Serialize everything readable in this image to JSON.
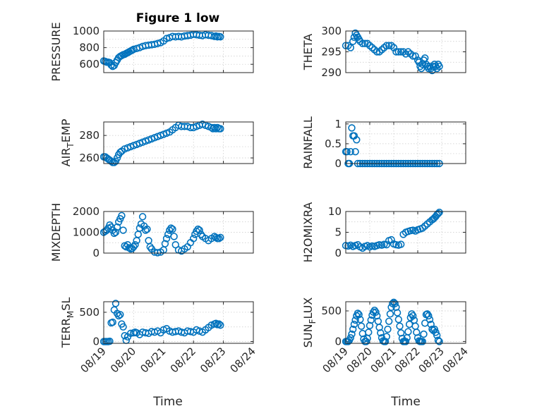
{
  "figure": {
    "title": "Figure 1 low",
    "marker_color": "#0072BD"
  },
  "chart_data": [
    {
      "type": "scatter",
      "title": "Figure 1 low",
      "xlabel": "",
      "ylabel": "PRESSURE",
      "ylabel_main": "PRESSURE",
      "ylabel_sub": "",
      "ylabel_tail": "",
      "xlim": [
        0,
        5
      ],
      "ylim": [
        500,
        1000
      ],
      "yticks": [
        600,
        800,
        1000
      ],
      "ytick_labels": [
        "600",
        "800",
        "1000"
      ],
      "xticks": [
        0,
        1,
        2,
        3,
        4,
        5
      ],
      "xtick_labels": [],
      "grid": true,
      "x": [
        0.0,
        0.05,
        0.1,
        0.15,
        0.2,
        0.25,
        0.3,
        0.35,
        0.4,
        0.45,
        0.5,
        0.55,
        0.6,
        0.65,
        0.7,
        0.75,
        0.8,
        0.85,
        0.9,
        0.95,
        1.0,
        1.1,
        1.2,
        1.3,
        1.4,
        1.5,
        1.6,
        1.7,
        1.8,
        1.9,
        2.0,
        2.1,
        2.2,
        2.3,
        2.4,
        2.5,
        2.6,
        2.7,
        2.8,
        2.9,
        3.0,
        3.1,
        3.2,
        3.3,
        3.4,
        3.5,
        3.6,
        3.7,
        3.75,
        3.8,
        3.85,
        3.9
      ],
      "y": [
        640,
        635,
        625,
        625,
        620,
        590,
        575,
        585,
        620,
        650,
        680,
        695,
        705,
        715,
        720,
        730,
        740,
        750,
        760,
        770,
        780,
        790,
        800,
        815,
        825,
        830,
        835,
        840,
        850,
        860,
        880,
        910,
        920,
        935,
        930,
        935,
        930,
        940,
        945,
        950,
        960,
        955,
        950,
        945,
        955,
        950,
        945,
        935,
        940,
        930,
        935,
        930
      ]
    },
    {
      "type": "scatter",
      "xlabel": "",
      "ylabel": "THETA",
      "ylabel_main": "THETA",
      "ylabel_sub": "",
      "ylabel_tail": "",
      "xlim": [
        0,
        5
      ],
      "ylim": [
        290,
        300
      ],
      "yticks": [
        290,
        295,
        300
      ],
      "ytick_labels": [
        "290",
        "295",
        "300"
      ],
      "xticks": [
        0,
        1,
        2,
        3,
        4,
        5
      ],
      "xtick_labels": [],
      "grid": true,
      "x": [
        0.0,
        0.1,
        0.2,
        0.3,
        0.35,
        0.4,
        0.45,
        0.5,
        0.55,
        0.6,
        0.7,
        0.8,
        0.9,
        1.0,
        1.1,
        1.2,
        1.3,
        1.4,
        1.5,
        1.6,
        1.7,
        1.8,
        1.9,
        2.0,
        2.1,
        2.2,
        2.3,
        2.4,
        2.5,
        2.6,
        2.7,
        2.8,
        2.9,
        3.0,
        3.05,
        3.1,
        3.15,
        3.2,
        3.25,
        3.3,
        3.35,
        3.4,
        3.45,
        3.5,
        3.55,
        3.6,
        3.65,
        3.7,
        3.75,
        3.8,
        3.85,
        3.9
      ],
      "y": [
        296.5,
        296.5,
        296,
        297.5,
        298.5,
        299.5,
        299,
        298.5,
        298,
        297.5,
        297,
        297,
        297,
        296.5,
        296,
        295.5,
        295,
        295,
        295.5,
        296,
        296.5,
        296.5,
        296.5,
        296,
        295,
        295,
        295,
        295,
        294.5,
        295,
        294.5,
        294,
        294,
        293,
        292.5,
        291.5,
        291,
        292,
        293,
        293.5,
        292,
        291.5,
        291,
        291.5,
        291,
        290.5,
        291.5,
        292,
        291.5,
        291,
        292,
        291.5
      ]
    },
    {
      "type": "scatter",
      "xlabel": "",
      "ylabel": "AIR_TEMP",
      "ylabel_main": "AIR",
      "ylabel_sub": "T",
      "ylabel_tail": "EMP",
      "xlim": [
        0,
        5
      ],
      "ylim": [
        255,
        292
      ],
      "yticks": [
        260,
        280
      ],
      "ytick_labels": [
        "260",
        "280"
      ],
      "xticks": [
        0,
        1,
        2,
        3,
        4,
        5
      ],
      "xtick_labels": [],
      "grid": true,
      "x": [
        0.0,
        0.05,
        0.1,
        0.15,
        0.2,
        0.25,
        0.3,
        0.35,
        0.4,
        0.45,
        0.5,
        0.55,
        0.6,
        0.7,
        0.8,
        0.9,
        1.0,
        1.1,
        1.2,
        1.3,
        1.4,
        1.5,
        1.6,
        1.7,
        1.8,
        1.9,
        2.0,
        2.1,
        2.2,
        2.3,
        2.4,
        2.5,
        2.6,
        2.7,
        2.8,
        2.9,
        3.0,
        3.1,
        3.2,
        3.3,
        3.4,
        3.5,
        3.6,
        3.65,
        3.7,
        3.75,
        3.8,
        3.85,
        3.9
      ],
      "y": [
        261,
        261,
        260,
        259,
        258,
        257,
        256,
        256,
        257,
        260,
        263,
        265,
        266,
        268,
        269,
        270,
        271,
        272,
        273,
        274,
        275,
        276,
        277,
        278,
        279,
        280,
        281,
        282,
        283,
        285,
        287,
        289,
        288,
        288,
        288,
        287,
        287,
        288,
        289,
        290,
        289,
        288,
        287,
        286,
        287,
        286,
        287,
        286,
        286
      ]
    },
    {
      "type": "scatter",
      "xlabel": "",
      "ylabel": "RAINFALL",
      "ylabel_main": "RAINFALL",
      "ylabel_sub": "",
      "ylabel_tail": "",
      "xlim": [
        0,
        5
      ],
      "ylim": [
        0,
        1.05
      ],
      "yticks": [
        0,
        0.5,
        1
      ],
      "ytick_labels": [
        "0",
        "0.5",
        "1"
      ],
      "xticks": [
        0,
        1,
        2,
        3,
        4,
        5
      ],
      "xtick_labels": [],
      "grid": true,
      "x": [
        0.0,
        0.05,
        0.1,
        0.15,
        0.2,
        0.25,
        0.3,
        0.35,
        0.4,
        0.45,
        0.5,
        0.6,
        0.7,
        0.8,
        0.9,
        1.0,
        1.1,
        1.2,
        1.3,
        1.4,
        1.5,
        1.6,
        1.7,
        1.8,
        1.9,
        2.0,
        2.1,
        2.2,
        2.3,
        2.4,
        2.5,
        2.6,
        2.7,
        2.8,
        2.9,
        3.0,
        3.1,
        3.2,
        3.3,
        3.4,
        3.5,
        3.6,
        3.7,
        3.8,
        3.9
      ],
      "y": [
        0.3,
        0.3,
        0.0,
        0.0,
        0.3,
        0.9,
        0.7,
        0.7,
        0.3,
        0.6,
        0.0,
        0,
        0,
        0,
        0,
        0,
        0,
        0,
        0,
        0,
        0,
        0,
        0,
        0,
        0,
        0,
        0,
        0,
        0,
        0,
        0,
        0,
        0,
        0,
        0,
        0,
        0,
        0,
        0,
        0,
        0,
        0,
        0,
        0,
        0
      ]
    },
    {
      "type": "scatter",
      "xlabel": "",
      "ylabel": "MIXDEPTH",
      "ylabel_main": "MIXDEPTH",
      "ylabel_sub": "",
      "ylabel_tail": "",
      "xlim": [
        0,
        5
      ],
      "ylim": [
        0,
        2000
      ],
      "yticks": [
        0,
        1000,
        2000
      ],
      "ytick_labels": [
        "0",
        "1000",
        "2000"
      ],
      "xticks": [
        0,
        1,
        2,
        3,
        4,
        5
      ],
      "xtick_labels": [],
      "grid": true,
      "x": [
        0.0,
        0.05,
        0.1,
        0.15,
        0.2,
        0.25,
        0.3,
        0.35,
        0.4,
        0.45,
        0.5,
        0.55,
        0.6,
        0.65,
        0.7,
        0.75,
        0.8,
        0.85,
        0.9,
        0.95,
        1.0,
        1.05,
        1.1,
        1.15,
        1.2,
        1.25,
        1.3,
        1.35,
        1.4,
        1.45,
        1.5,
        1.55,
        1.6,
        1.7,
        1.8,
        1.9,
        2.0,
        2.05,
        2.1,
        2.15,
        2.2,
        2.25,
        2.3,
        2.35,
        2.4,
        2.5,
        2.6,
        2.7,
        2.8,
        2.9,
        3.0,
        3.05,
        3.1,
        3.15,
        3.2,
        3.25,
        3.3,
        3.4,
        3.5,
        3.6,
        3.7,
        3.75,
        3.8,
        3.85,
        3.9
      ],
      "y": [
        1000,
        1050,
        1100,
        1200,
        1350,
        1250,
        1100,
        950,
        1000,
        1250,
        1500,
        1650,
        1800,
        1100,
        350,
        300,
        400,
        250,
        200,
        220,
        300,
        400,
        600,
        900,
        1200,
        1400,
        1750,
        1300,
        1100,
        1150,
        600,
        300,
        200,
        50,
        20,
        50,
        150,
        450,
        700,
        900,
        1100,
        1200,
        1150,
        800,
        400,
        150,
        100,
        200,
        300,
        500,
        700,
        900,
        1050,
        1150,
        1100,
        900,
        800,
        700,
        600,
        700,
        800,
        750,
        700,
        700,
        750
      ]
    },
    {
      "type": "scatter",
      "xlabel": "",
      "ylabel": "H2OMIXRA",
      "ylabel_main": "H2OMIXRA",
      "ylabel_sub": "",
      "ylabel_tail": "",
      "xlim": [
        0,
        5
      ],
      "ylim": [
        0,
        10
      ],
      "yticks": [
        0,
        5,
        10
      ],
      "ytick_labels": [
        "0",
        "5",
        "10"
      ],
      "xticks": [
        0,
        1,
        2,
        3,
        4,
        5
      ],
      "xtick_labels": [],
      "grid": true,
      "x": [
        0.0,
        0.1,
        0.2,
        0.3,
        0.4,
        0.5,
        0.6,
        0.7,
        0.8,
        0.9,
        1.0,
        1.1,
        1.2,
        1.3,
        1.4,
        1.5,
        1.6,
        1.7,
        1.8,
        1.9,
        2.0,
        2.1,
        2.2,
        2.3,
        2.4,
        2.5,
        2.6,
        2.7,
        2.8,
        2.9,
        3.0,
        3.1,
        3.2,
        3.3,
        3.4,
        3.5,
        3.6,
        3.65,
        3.7,
        3.75,
        3.8,
        3.85,
        3.9
      ],
      "y": [
        1.8,
        1.7,
        1.9,
        1.6,
        1.8,
        2.0,
        1.5,
        1.2,
        1.6,
        1.8,
        1.5,
        1.7,
        1.6,
        1.8,
        2.0,
        1.9,
        2.1,
        2.0,
        3.0,
        3.2,
        2.2,
        2.0,
        1.9,
        2.1,
        4.5,
        5.0,
        5.2,
        5.4,
        5.5,
        5.3,
        5.6,
        5.8,
        6.0,
        6.5,
        7.0,
        7.5,
        8.0,
        8.2,
        8.5,
        8.8,
        9.2,
        9.5,
        9.8
      ]
    },
    {
      "type": "scatter",
      "xlabel": "Time",
      "ylabel": "TERR_MSL",
      "ylabel_main": "TERR",
      "ylabel_sub": "M",
      "ylabel_tail": "SL",
      "xlim": [
        0,
        5
      ],
      "ylim": [
        -30,
        680
      ],
      "yticks": [
        0,
        500
      ],
      "ytick_labels": [
        "0",
        "500"
      ],
      "xticks": [
        0,
        1,
        2,
        3,
        4,
        5
      ],
      "xtick_labels": [
        "08/19",
        "08/20",
        "08/21",
        "08/22",
        "08/23",
        "08/24"
      ],
      "grid": true,
      "x": [
        0.0,
        0.05,
        0.1,
        0.15,
        0.2,
        0.25,
        0.3,
        0.35,
        0.4,
        0.45,
        0.5,
        0.55,
        0.6,
        0.65,
        0.7,
        0.75,
        0.8,
        0.9,
        1.0,
        1.05,
        1.1,
        1.2,
        1.3,
        1.4,
        1.5,
        1.6,
        1.7,
        1.8,
        1.9,
        2.0,
        2.1,
        2.2,
        2.3,
        2.4,
        2.5,
        2.6,
        2.7,
        2.8,
        2.9,
        3.0,
        3.1,
        3.2,
        3.3,
        3.4,
        3.5,
        3.6,
        3.7,
        3.75,
        3.8,
        3.85,
        3.9
      ],
      "y": [
        0,
        0,
        0,
        0,
        5,
        320,
        330,
        540,
        650,
        480,
        440,
        460,
        300,
        250,
        100,
        20,
        80,
        140,
        150,
        160,
        150,
        120,
        160,
        150,
        140,
        170,
        160,
        180,
        150,
        200,
        220,
        180,
        160,
        170,
        180,
        160,
        150,
        180,
        170,
        160,
        200,
        180,
        160,
        200,
        240,
        280,
        300,
        310,
        290,
        300,
        280
      ]
    },
    {
      "type": "scatter",
      "xlabel": "Time",
      "ylabel": "SUN_FLUX",
      "ylabel_main": "SUN",
      "ylabel_sub": "F",
      "ylabel_tail": "LUX",
      "xlim": [
        0,
        5
      ],
      "ylim": [
        -30,
        650
      ],
      "yticks": [
        0,
        500
      ],
      "ytick_labels": [
        "0",
        "500"
      ],
      "xticks": [
        0,
        1,
        2,
        3,
        4,
        5
      ],
      "xtick_labels": [
        "08/19",
        "08/20",
        "08/21",
        "08/22",
        "08/23",
        "08/24"
      ],
      "grid": true,
      "x": [
        0.0,
        0.05,
        0.1,
        0.15,
        0.2,
        0.25,
        0.3,
        0.35,
        0.4,
        0.45,
        0.5,
        0.55,
        0.6,
        0.65,
        0.7,
        0.75,
        0.8,
        0.85,
        0.9,
        0.95,
        1.0,
        1.05,
        1.1,
        1.15,
        1.2,
        1.25,
        1.3,
        1.35,
        1.4,
        1.45,
        1.5,
        1.55,
        1.6,
        1.65,
        1.7,
        1.75,
        1.8,
        1.85,
        1.9,
        1.95,
        2.0,
        2.05,
        2.1,
        2.15,
        2.2,
        2.25,
        2.3,
        2.35,
        2.4,
        2.45,
        2.5,
        2.55,
        2.6,
        2.65,
        2.7,
        2.75,
        2.8,
        2.85,
        2.9,
        2.95,
        3.0,
        3.05,
        3.1,
        3.15,
        3.2,
        3.25,
        3.3,
        3.35,
        3.4,
        3.45,
        3.5,
        3.55,
        3.6,
        3.65,
        3.7,
        3.75,
        3.8,
        3.85,
        3.9
      ],
      "y": [
        0,
        0,
        0,
        20,
        60,
        120,
        200,
        280,
        350,
        420,
        460,
        440,
        360,
        250,
        130,
        40,
        0,
        0,
        50,
        150,
        260,
        350,
        430,
        480,
        510,
        480,
        420,
        330,
        230,
        140,
        60,
        10,
        0,
        0,
        80,
        200,
        330,
        450,
        560,
        620,
        640,
        620,
        560,
        470,
        360,
        250,
        140,
        50,
        0,
        0,
        0,
        60,
        160,
        280,
        390,
        450,
        420,
        350,
        250,
        150,
        60,
        10,
        0,
        0,
        0,
        120,
        300,
        440,
        450,
        420,
        360,
        280,
        200,
        180,
        200,
        150,
        100,
        20,
        0
      ]
    }
  ]
}
